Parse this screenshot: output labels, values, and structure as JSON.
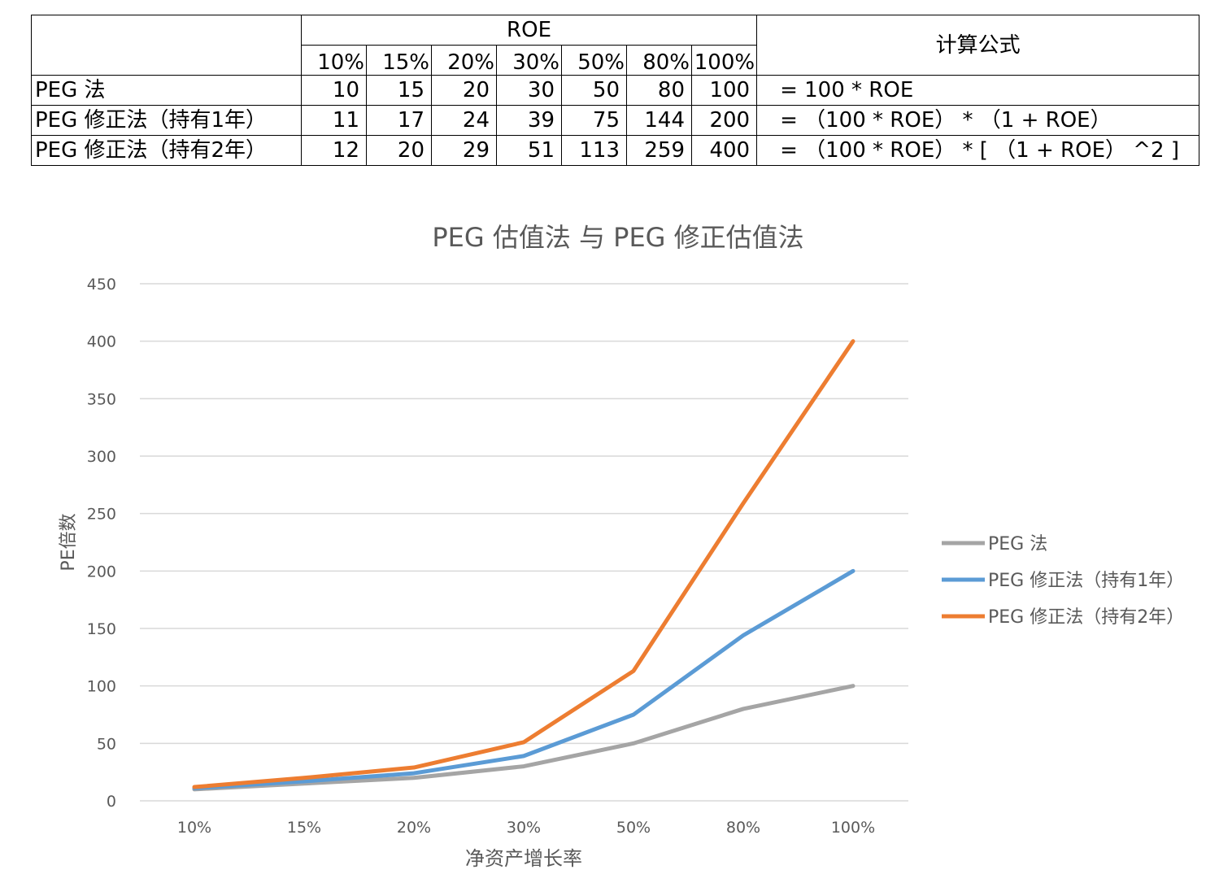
{
  "table": {
    "header_group": "ROE",
    "formula_header": "计算公式",
    "columns": [
      "10%",
      "15%",
      "20%",
      "30%",
      "50%",
      "80%",
      "100%"
    ],
    "rows": [
      {
        "label": "PEG 法",
        "values": [
          "10",
          "15",
          "20",
          "30",
          "50",
          "80",
          "100"
        ],
        "formula": "= 100 * ROE"
      },
      {
        "label": "PEG 修正法（持有1年）",
        "values": [
          "11",
          "17",
          "24",
          "39",
          "75",
          "144",
          "200"
        ],
        "formula": "= （100 * ROE） * （1 + ROE）"
      },
      {
        "label": "PEG 修正法（持有2年）",
        "values": [
          "12",
          "20",
          "29",
          "51",
          "113",
          "259",
          "400"
        ],
        "formula": "= （100 * ROE） * [ （1 + ROE） ^2 ]"
      }
    ]
  },
  "chart_data": {
    "type": "line",
    "title": "PEG 估值法 与 PEG 修正估值法",
    "xlabel": "净资产增长率",
    "ylabel": "PE倍数",
    "categories": [
      "10%",
      "15%",
      "20%",
      "30%",
      "50%",
      "80%",
      "100%"
    ],
    "ylim": [
      0,
      450
    ],
    "yticks": [
      0,
      50,
      100,
      150,
      200,
      250,
      300,
      350,
      400,
      450
    ],
    "grid": true,
    "legend_position": "right",
    "series": [
      {
        "name": "PEG 法",
        "values": [
          10,
          15,
          20,
          30,
          50,
          80,
          100
        ],
        "color": "#a5a5a5"
      },
      {
        "name": "PEG 修正法（持有1年）",
        "values": [
          11,
          17,
          24,
          39,
          75,
          144,
          200
        ],
        "color": "#5b9bd5"
      },
      {
        "name": "PEG 修正法（持有2年）",
        "values": [
          12,
          20,
          29,
          51,
          113,
          259,
          400
        ],
        "color": "#ed7d31"
      }
    ],
    "gridline_color": "#d9d9d9",
    "text_color": "#595959"
  }
}
